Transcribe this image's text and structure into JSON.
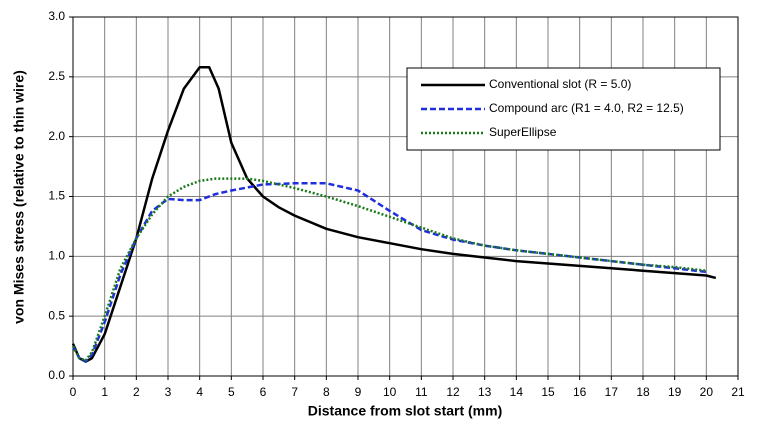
{
  "chart_data": {
    "type": "line",
    "x_label": "Distance from slot start (mm)",
    "y_label": "von Mises stress (relative to thin wire)",
    "xlim": [
      0,
      21
    ],
    "ylim": [
      0,
      3
    ],
    "xticks": [
      0,
      1,
      2,
      3,
      4,
      5,
      6,
      7,
      8,
      9,
      10,
      11,
      12,
      13,
      14,
      15,
      16,
      17,
      18,
      19,
      20,
      21
    ],
    "yticks": [
      {
        "value": 0,
        "label": "0.0"
      },
      0.5,
      {
        "value": 1,
        "label": "1.0"
      },
      1.5,
      {
        "value": 2,
        "label": "2.0"
      },
      2.5,
      {
        "value": 3,
        "label": "3.0"
      }
    ],
    "grid": true,
    "legend": "upper right",
    "series": [
      {
        "name": "Conventional slot (R = 5.0)",
        "color": "#000000",
        "dash": "solid",
        "x": [
          0,
          0.2,
          0.4,
          0.6,
          1,
          1.5,
          2,
          2.5,
          3,
          3.5,
          4,
          4.3,
          4.6,
          5,
          5.5,
          6,
          6.5,
          7,
          8,
          9,
          10,
          11,
          12,
          13,
          14,
          15,
          16,
          17,
          18,
          19,
          20,
          20.3
        ],
        "values": [
          0.27,
          0.15,
          0.12,
          0.15,
          0.35,
          0.75,
          1.15,
          1.65,
          2.05,
          2.4,
          2.58,
          2.58,
          2.4,
          1.95,
          1.65,
          1.5,
          1.41,
          1.34,
          1.23,
          1.16,
          1.11,
          1.06,
          1.02,
          0.99,
          0.96,
          0.94,
          0.92,
          0.9,
          0.88,
          0.86,
          0.84,
          0.82
        ]
      },
      {
        "name": "Compound arc (R1 = 4.0, R2 = 12.5)",
        "color": "#1f2fe0",
        "dash": "dashed",
        "x": [
          0,
          0.2,
          0.4,
          0.6,
          1,
          1.5,
          2,
          2.5,
          3,
          3.5,
          4,
          4.5,
          5,
          6,
          7,
          8,
          9,
          10,
          11,
          12,
          13,
          14,
          15,
          16,
          17,
          18,
          19,
          20
        ],
        "values": [
          0.25,
          0.15,
          0.12,
          0.18,
          0.45,
          0.85,
          1.15,
          1.38,
          1.48,
          1.47,
          1.47,
          1.52,
          1.55,
          1.6,
          1.61,
          1.61,
          1.55,
          1.38,
          1.22,
          1.14,
          1.09,
          1.05,
          1.02,
          0.99,
          0.96,
          0.93,
          0.9,
          0.87
        ]
      },
      {
        "name": "SuperEllipse",
        "color": "#1a7a1a",
        "dash": "dotted",
        "x": [
          0,
          0.2,
          0.4,
          0.6,
          1,
          1.5,
          2,
          2.5,
          3,
          3.5,
          4,
          4.5,
          5,
          5.5,
          6,
          7,
          8,
          9,
          10,
          11,
          12,
          13,
          14,
          15,
          16,
          17,
          18,
          19,
          20
        ],
        "values": [
          0.25,
          0.15,
          0.13,
          0.2,
          0.5,
          0.9,
          1.15,
          1.35,
          1.5,
          1.58,
          1.63,
          1.65,
          1.65,
          1.65,
          1.63,
          1.57,
          1.5,
          1.42,
          1.33,
          1.24,
          1.15,
          1.09,
          1.05,
          1.02,
          0.99,
          0.96,
          0.93,
          0.91,
          0.88
        ]
      }
    ]
  }
}
